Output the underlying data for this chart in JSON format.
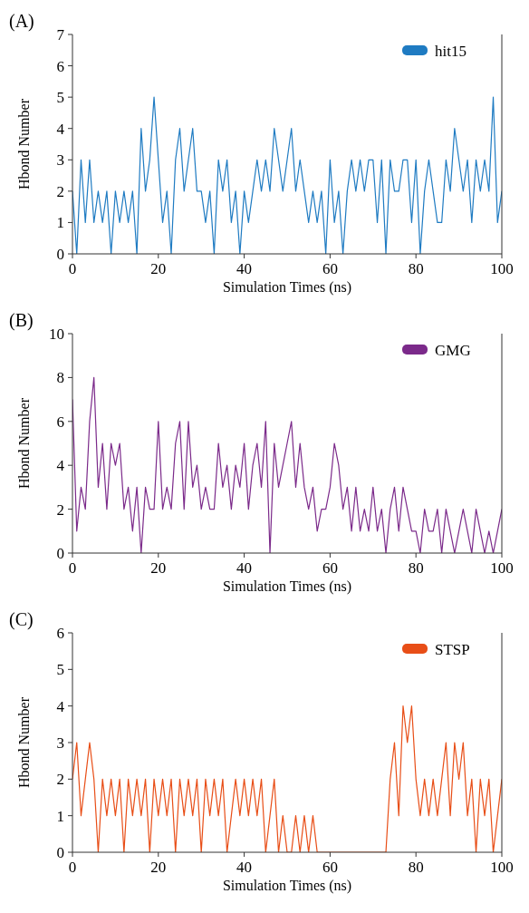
{
  "chart_data": [
    {
      "type": "line",
      "title": "(A)",
      "xlabel": "Simulation Times (ns)",
      "ylabel": "Hbond Number",
      "xlim": [
        0,
        100
      ],
      "xticks": [
        0,
        20,
        40,
        60,
        80,
        100
      ],
      "ylim": [
        0,
        7
      ],
      "yticks": [
        0,
        1,
        2,
        3,
        4,
        5,
        6,
        7
      ],
      "legend": "top right",
      "grid": false,
      "x": [
        0,
        1,
        2,
        3,
        4,
        5,
        6,
        7,
        8,
        9,
        10,
        11,
        12,
        13,
        14,
        15,
        16,
        17,
        18,
        19,
        20,
        21,
        22,
        23,
        24,
        25,
        26,
        27,
        28,
        29,
        30,
        31,
        32,
        33,
        34,
        35,
        36,
        37,
        38,
        39,
        40,
        41,
        42,
        43,
        44,
        45,
        46,
        47,
        48,
        49,
        50,
        51,
        52,
        53,
        54,
        55,
        56,
        57,
        58,
        59,
        60,
        61,
        62,
        63,
        64,
        65,
        66,
        67,
        68,
        69,
        70,
        71,
        72,
        73,
        74,
        75,
        76,
        77,
        78,
        79,
        80,
        81,
        82,
        83,
        84,
        85,
        86,
        87,
        88,
        89,
        90,
        91,
        92,
        93,
        94,
        95,
        96,
        97,
        98,
        99,
        100
      ],
      "series": [
        {
          "name": "hit15",
          "color": "#1f7bc2",
          "values": [
            2,
            0,
            3,
            1,
            3,
            1,
            2,
            1,
            2,
            0,
            2,
            1,
            2,
            1,
            2,
            0,
            4,
            2,
            3,
            5,
            3,
            1,
            2,
            0,
            3,
            4,
            2,
            3,
            4,
            2,
            2,
            1,
            2,
            0,
            3,
            2,
            3,
            1,
            2,
            0,
            2,
            1,
            2,
            3,
            2,
            3,
            2,
            4,
            3,
            2,
            3,
            4,
            2,
            3,
            2,
            1,
            2,
            1,
            2,
            0,
            3,
            1,
            2,
            0,
            2,
            3,
            2,
            3,
            2,
            3,
            3,
            1,
            3,
            0,
            3,
            2,
            2,
            3,
            3,
            1,
            3,
            0,
            2,
            3,
            2,
            1,
            1,
            3,
            2,
            4,
            3,
            2,
            3,
            1,
            3,
            2,
            3,
            2,
            5,
            1,
            2
          ]
        }
      ]
    },
    {
      "type": "line",
      "title": "(B)",
      "xlabel": "Simulation Times (ns)",
      "ylabel": "Hbond Number",
      "xlim": [
        0,
        100
      ],
      "xticks": [
        0,
        20,
        40,
        60,
        80,
        100
      ],
      "ylim": [
        0,
        10
      ],
      "yticks": [
        0,
        2,
        4,
        6,
        8,
        10
      ],
      "legend": "top right",
      "grid": false,
      "x": [
        0,
        1,
        2,
        3,
        4,
        5,
        6,
        7,
        8,
        9,
        10,
        11,
        12,
        13,
        14,
        15,
        16,
        17,
        18,
        19,
        20,
        21,
        22,
        23,
        24,
        25,
        26,
        27,
        28,
        29,
        30,
        31,
        32,
        33,
        34,
        35,
        36,
        37,
        38,
        39,
        40,
        41,
        42,
        43,
        44,
        45,
        46,
        47,
        48,
        49,
        50,
        51,
        52,
        53,
        54,
        55,
        56,
        57,
        58,
        59,
        60,
        61,
        62,
        63,
        64,
        65,
        66,
        67,
        68,
        69,
        70,
        71,
        72,
        73,
        74,
        75,
        76,
        77,
        78,
        79,
        80,
        81,
        82,
        83,
        84,
        85,
        86,
        87,
        88,
        89,
        90,
        91,
        92,
        93,
        94,
        95,
        96,
        97,
        98,
        99,
        100
      ],
      "series": [
        {
          "name": "GMG",
          "color": "#7b2a8a",
          "values": [
            7,
            1,
            3,
            2,
            6,
            8,
            3,
            5,
            2,
            5,
            4,
            5,
            2,
            3,
            1,
            3,
            0,
            3,
            2,
            2,
            6,
            2,
            3,
            2,
            5,
            6,
            2,
            6,
            3,
            4,
            2,
            3,
            2,
            2,
            5,
            3,
            4,
            2,
            4,
            3,
            5,
            2,
            4,
            5,
            3,
            6,
            0,
            5,
            3,
            4,
            5,
            6,
            3,
            5,
            3,
            2,
            3,
            1,
            2,
            2,
            3,
            5,
            4,
            2,
            3,
            1,
            3,
            1,
            2,
            1,
            3,
            1,
            2,
            0,
            2,
            3,
            1,
            3,
            2,
            1,
            1,
            0,
            2,
            1,
            1,
            2,
            0,
            2,
            1,
            0,
            1,
            2,
            1,
            0,
            2,
            1,
            0,
            1,
            0,
            1,
            2
          ]
        }
      ]
    },
    {
      "type": "line",
      "title": "(C)",
      "xlabel": "Simulation Times (ns)",
      "ylabel": "Hbond Number",
      "xlim": [
        0,
        100
      ],
      "xticks": [
        0,
        20,
        40,
        60,
        80,
        100
      ],
      "ylim": [
        0,
        6
      ],
      "yticks": [
        0,
        1,
        2,
        3,
        4,
        5,
        6
      ],
      "legend": "top right",
      "grid": false,
      "x": [
        0,
        1,
        2,
        3,
        4,
        5,
        6,
        7,
        8,
        9,
        10,
        11,
        12,
        13,
        14,
        15,
        16,
        17,
        18,
        19,
        20,
        21,
        22,
        23,
        24,
        25,
        26,
        27,
        28,
        29,
        30,
        31,
        32,
        33,
        34,
        35,
        36,
        37,
        38,
        39,
        40,
        41,
        42,
        43,
        44,
        45,
        46,
        47,
        48,
        49,
        50,
        51,
        52,
        53,
        54,
        55,
        56,
        57,
        58,
        59,
        60,
        61,
        62,
        63,
        64,
        65,
        66,
        67,
        68,
        69,
        70,
        71,
        72,
        73,
        74,
        75,
        76,
        77,
        78,
        79,
        80,
        81,
        82,
        83,
        84,
        85,
        86,
        87,
        88,
        89,
        90,
        91,
        92,
        93,
        94,
        95,
        96,
        97,
        98,
        99,
        100
      ],
      "series": [
        {
          "name": "STSP",
          "color": "#e84e17",
          "values": [
            2,
            3,
            1,
            2,
            3,
            2,
            0,
            2,
            1,
            2,
            1,
            2,
            0,
            2,
            1,
            2,
            1,
            2,
            0,
            2,
            1,
            2,
            1,
            2,
            0,
            2,
            1,
            2,
            1,
            2,
            0,
            2,
            1,
            2,
            1,
            2,
            0,
            1,
            2,
            1,
            2,
            1,
            2,
            1,
            2,
            0,
            1,
            2,
            0,
            1,
            0,
            0,
            1,
            0,
            1,
            0,
            1,
            0,
            0,
            0,
            0,
            0,
            0,
            0,
            0,
            0,
            0,
            0,
            0,
            0,
            0,
            0,
            0,
            0,
            2,
            3,
            1,
            4,
            3,
            4,
            2,
            1,
            2,
            1,
            2,
            1,
            2,
            3,
            1,
            3,
            2,
            3,
            1,
            2,
            0,
            2,
            1,
            2,
            0,
            1,
            2
          ]
        }
      ]
    }
  ]
}
